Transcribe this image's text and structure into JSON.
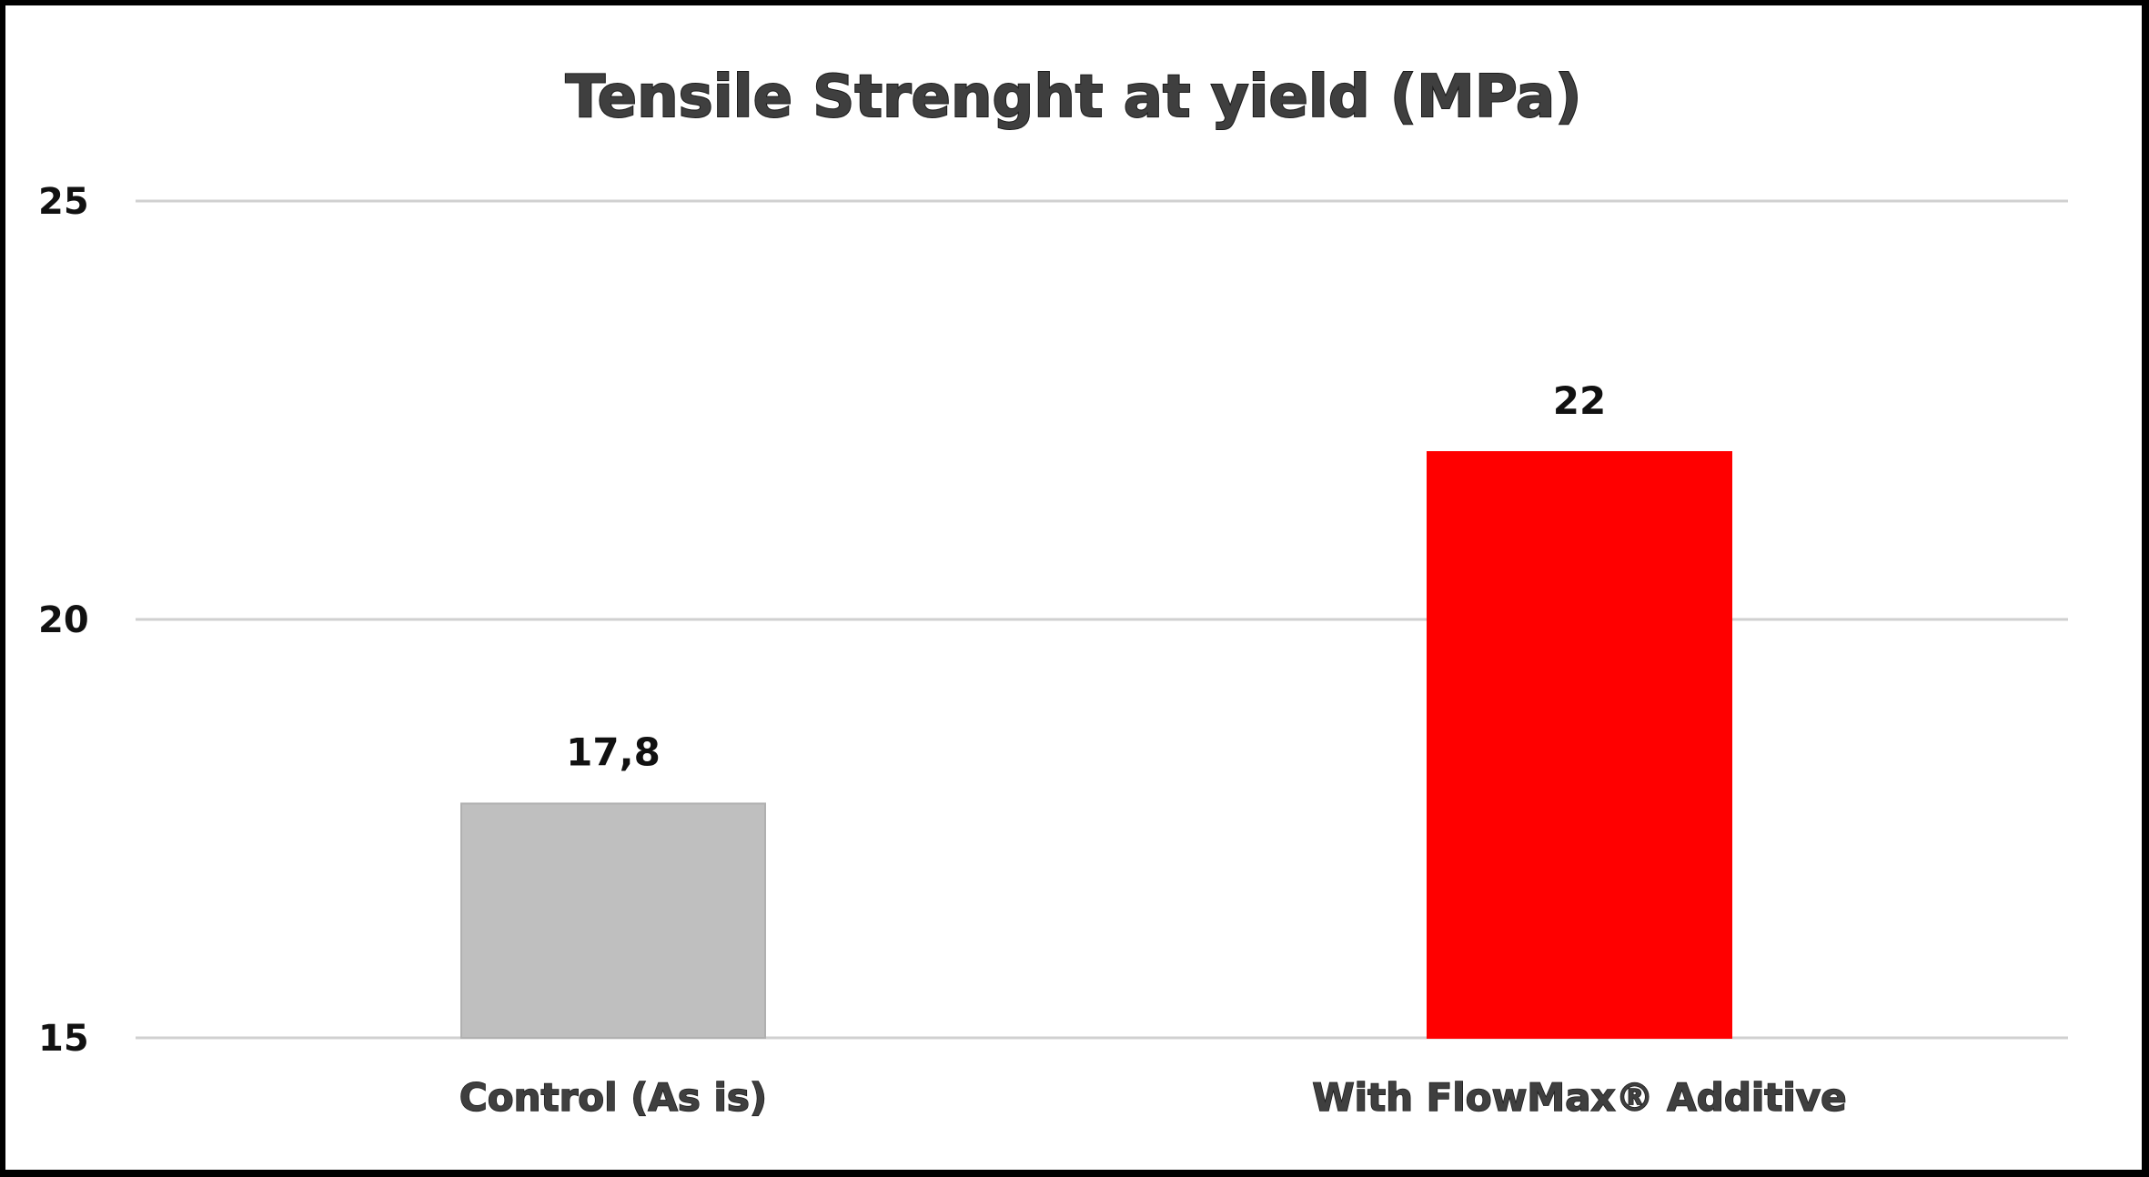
{
  "chart_data": {
    "type": "bar",
    "title": "Tensile Strenght at yield (MPa)",
    "categories": [
      "Control (As is)",
      "With FlowMax® Additive"
    ],
    "values": [
      17.8,
      22
    ],
    "data_labels": [
      "17,8",
      "22"
    ],
    "ylim": [
      15,
      25
    ],
    "yticks": [
      15,
      20,
      25
    ],
    "ytick_labels": [
      "15",
      "20",
      "25"
    ],
    "bar_colors": [
      "#bfbfbf",
      "#ff0000"
    ],
    "grid": true,
    "xlabel": "",
    "ylabel": ""
  }
}
